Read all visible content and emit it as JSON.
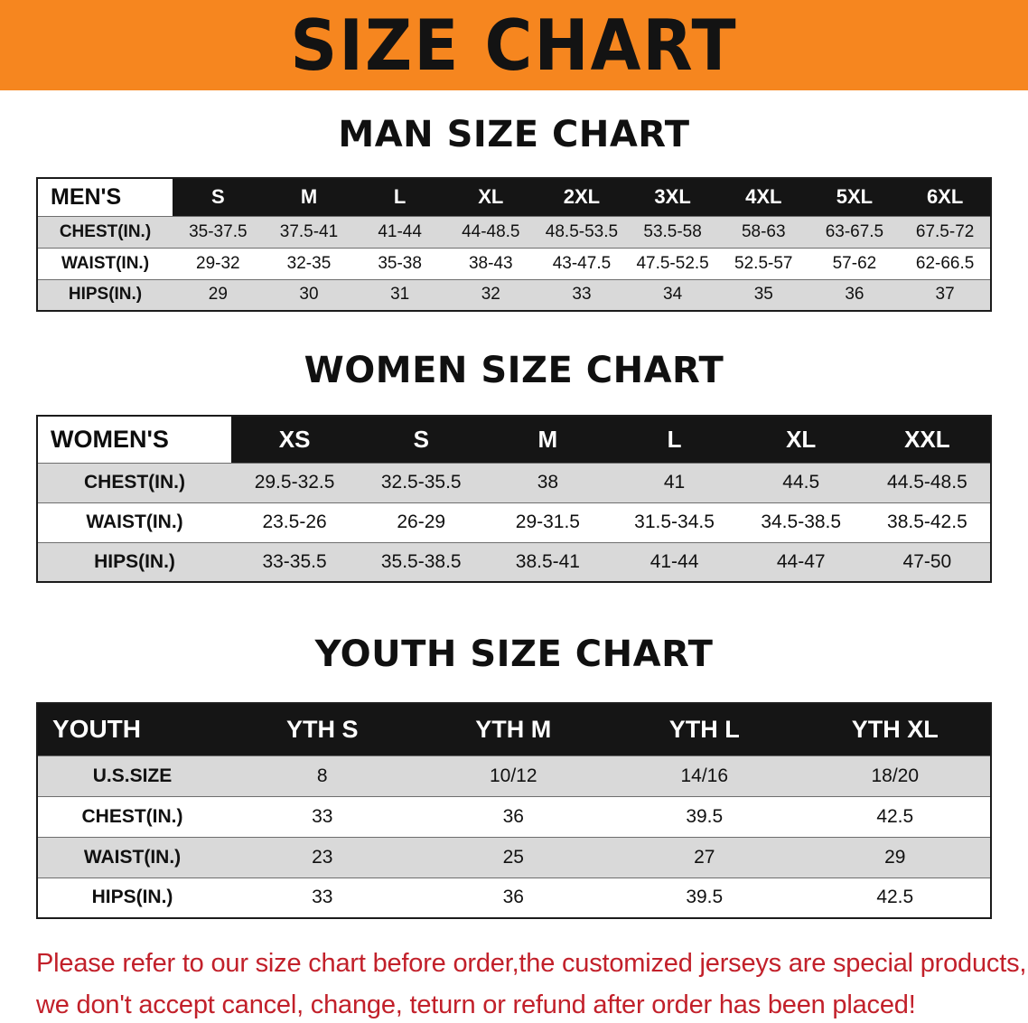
{
  "banner": {
    "title": "SIZE CHART"
  },
  "sections": [
    {
      "heading": "MAN SIZE CHART",
      "table": {
        "header": [
          "MEN'S",
          "S",
          "M",
          "L",
          "XL",
          "2XL",
          "3XL",
          "4XL",
          "5XL",
          "6XL"
        ],
        "rows": [
          [
            "CHEST(IN.)",
            "35-37.5",
            "37.5-41",
            "41-44",
            "44-48.5",
            "48.5-53.5",
            "53.5-58",
            "58-63",
            "63-67.5",
            "67.5-72"
          ],
          [
            "WAIST(IN.)",
            "29-32",
            "32-35",
            "35-38",
            "38-43",
            "43-47.5",
            "47.5-52.5",
            "52.5-57",
            "57-62",
            "62-66.5"
          ],
          [
            "HIPS(IN.)",
            "29",
            "30",
            "31",
            "32",
            "33",
            "34",
            "35",
            "36",
            "37"
          ]
        ]
      }
    },
    {
      "heading": "WOMEN SIZE CHART",
      "table": {
        "header": [
          "WOMEN'S",
          "XS",
          "S",
          "M",
          "L",
          "XL",
          "XXL"
        ],
        "rows": [
          [
            "CHEST(IN.)",
            "29.5-32.5",
            "32.5-35.5",
            "38",
            "41",
            "44.5",
            "44.5-48.5"
          ],
          [
            "WAIST(IN.)",
            "23.5-26",
            "26-29",
            "29-31.5",
            "31.5-34.5",
            "34.5-38.5",
            "38.5-42.5"
          ],
          [
            "HIPS(IN.)",
            "33-35.5",
            "35.5-38.5",
            "38.5-41",
            "41-44",
            "44-47",
            "47-50"
          ]
        ]
      }
    },
    {
      "heading": "YOUTH SIZE CHART",
      "table": {
        "header": [
          "YOUTH",
          "YTH S",
          "YTH M",
          "YTH L",
          "YTH XL"
        ],
        "rows": [
          [
            "U.S.SIZE",
            "8",
            "10/12",
            "14/16",
            "18/20"
          ],
          [
            "CHEST(IN.)",
            "33",
            "36",
            "39.5",
            "42.5"
          ],
          [
            "WAIST(IN.)",
            "23",
            "25",
            "27",
            "29"
          ],
          [
            "HIPS(IN.)",
            "33",
            "36",
            "39.5",
            "42.5"
          ]
        ]
      }
    }
  ],
  "footer": {
    "line1": "Please refer to our size chart before order,the customized jerseys are special products,",
    "line2": "we don't accept cancel, change, teturn or refund after order has been placed!"
  },
  "colors": {
    "banner_bg": "#f6861f",
    "table_header_bg": "#151515",
    "row_alt_bg": "#d9d9d9",
    "disclaimer_text": "#c2202a"
  }
}
